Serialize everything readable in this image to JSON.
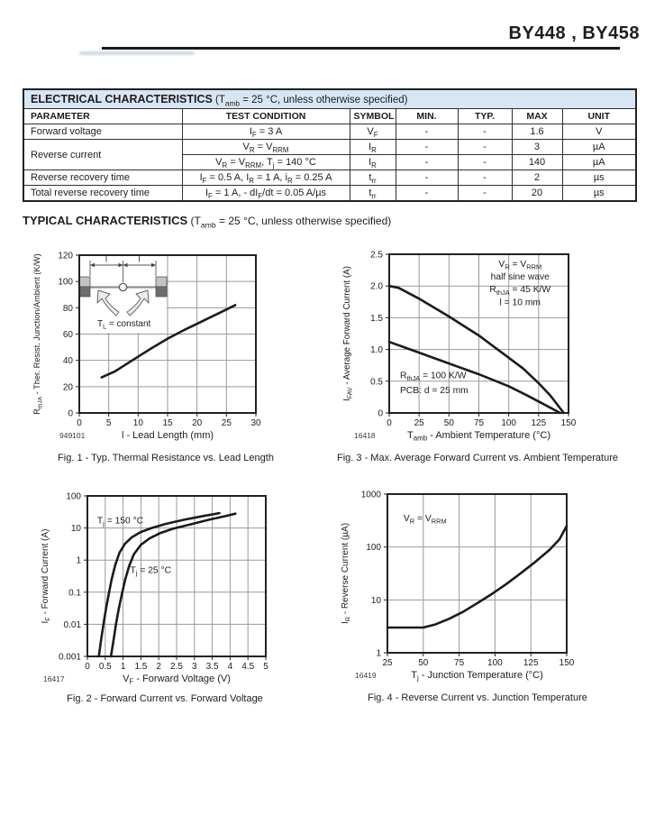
{
  "page": {
    "title": "BY448 , BY458"
  },
  "colors": {
    "table_title_bg": "#d8e6f3",
    "grid": "#9a9a9a",
    "curve": "#1b1b1b",
    "rule": "#1a1a1a"
  },
  "electrical_table": {
    "title_bold": "ELECTRICAL CHARACTERISTICS",
    "title_rest": " (T~amb~ = 25 °C, unless otherwise specified)",
    "columns": [
      "PARAMETER",
      "TEST CONDITION",
      "SYMBOL",
      "MIN.",
      "TYP.",
      "MAX",
      "UNIT"
    ],
    "rows": [
      {
        "parameter": "Forward voltage",
        "rowspan": 1,
        "condition": "I~F~ = 3 A",
        "symbol": "V~F~",
        "min": "-",
        "typ": "-",
        "max": "1.6",
        "unit": "V"
      },
      {
        "parameter": "Reverse current",
        "rowspan": 2,
        "condition": "V~R~ = V~RRM~",
        "symbol": "I~R~",
        "min": "-",
        "typ": "-",
        "max": "3",
        "unit": "µA"
      },
      {
        "parameter": null,
        "condition": "V~R~ = V~RRM~, T~j~ = 140 °C",
        "symbol": "I~R~",
        "min": "-",
        "typ": "-",
        "max": "140",
        "unit": "µA"
      },
      {
        "parameter": "Reverse recovery time",
        "rowspan": 1,
        "condition": "I~F~ = 0.5 A, I~R~ = 1 A, i~R~ = 0.25 A",
        "symbol": "t~rr~",
        "min": "-",
        "typ": "-",
        "max": "2",
        "unit": "µs"
      },
      {
        "parameter": "Total reverse recovery time",
        "rowspan": 1,
        "condition": "I~F~ = 1 A, - dI~F~/dt = 0.05 A/µs",
        "symbol": "t~rr~",
        "min": "-",
        "typ": "-",
        "max": "20",
        "unit": "µs"
      }
    ]
  },
  "typical_heading": {
    "bold": "TYPICAL CHARACTERISTICS",
    "rest": " (T~amb~ = 25 °C, unless otherwise specified)"
  },
  "chart_data": [
    {
      "name": "fig1",
      "type": "line",
      "code": "949101",
      "caption": "Fig. 1 - Typ. Thermal Resistance vs. Lead Length",
      "xlabel": "l - Lead Length (mm)",
      "ylabel": "R~thJA~ - Ther. Resist. Junction/Ambient (K/W)",
      "xlim": [
        0,
        30
      ],
      "ylim": [
        0,
        120
      ],
      "xticks": [
        0,
        5,
        10,
        15,
        20,
        25,
        30
      ],
      "xtick_labels": [
        "0",
        "5",
        "10",
        "15",
        "20",
        "25",
        "30"
      ],
      "yticks": [
        0,
        20,
        40,
        60,
        80,
        100,
        120
      ],
      "ytick_labels": [
        "0",
        "20",
        "40",
        "60",
        "80",
        "100",
        "120"
      ],
      "grid": true,
      "series": [
        {
          "name": "RthJA vs lead length",
          "points": [
            [
              3.8,
              27
            ],
            [
              6,
              31.5
            ],
            [
              9,
              40
            ],
            [
              12,
              48.5
            ],
            [
              15,
              56.5
            ],
            [
              18,
              63.5
            ],
            [
              21,
              70
            ],
            [
              24,
              76.5
            ],
            [
              26.5,
              82
            ]
          ]
        }
      ],
      "annotations": [],
      "inset": {
        "type": "lead-cooling",
        "label": "T~L~ = constant"
      }
    },
    {
      "name": "fig2",
      "type": "line",
      "code": "16417",
      "caption": "Fig. 2 - Forward Current vs. Forward Voltage",
      "xlabel": "V~F~ - Forward Voltage (V)",
      "ylabel": "I~F~ - Forward Current (A)",
      "xlim": [
        0,
        5
      ],
      "ylim": [
        0.001,
        100
      ],
      "ylog": true,
      "xticks": [
        0,
        0.5,
        1,
        1.5,
        2,
        2.5,
        3,
        3.5,
        4,
        4.5,
        5
      ],
      "xtick_labels": [
        "0",
        "0.5",
        "1",
        "1.5",
        "2",
        "2.5",
        "3",
        "3.5",
        "4",
        "4.5",
        "5"
      ],
      "yticks": [
        0.001,
        0.01,
        0.1,
        1,
        10,
        100
      ],
      "ytick_labels": [
        "0.001",
        "0.01",
        "0.1",
        "1",
        "10",
        "100"
      ],
      "grid": true,
      "series": [
        {
          "name": "Tj = 150 °C",
          "points": [
            [
              0.32,
              0.001
            ],
            [
              0.38,
              0.003
            ],
            [
              0.45,
              0.01
            ],
            [
              0.52,
              0.03
            ],
            [
              0.6,
              0.09
            ],
            [
              0.68,
              0.25
            ],
            [
              0.78,
              0.7
            ],
            [
              0.9,
              1.7
            ],
            [
              1.05,
              3.2
            ],
            [
              1.25,
              5.2
            ],
            [
              1.5,
              7.5
            ],
            [
              1.8,
              10
            ],
            [
              2.2,
              13.5
            ],
            [
              2.7,
              18
            ],
            [
              3.2,
              23
            ],
            [
              3.7,
              29
            ]
          ]
        },
        {
          "name": "Tj = 25 °C",
          "points": [
            [
              0.66,
              0.001
            ],
            [
              0.73,
              0.003
            ],
            [
              0.8,
              0.01
            ],
            [
              0.88,
              0.03
            ],
            [
              0.97,
              0.09
            ],
            [
              1.06,
              0.25
            ],
            [
              1.17,
              0.65
            ],
            [
              1.3,
              1.5
            ],
            [
              1.5,
              3
            ],
            [
              1.75,
              4.8
            ],
            [
              2.05,
              7
            ],
            [
              2.4,
              9.5
            ],
            [
              2.9,
              13
            ],
            [
              3.4,
              18
            ],
            [
              3.9,
              24
            ],
            [
              4.15,
              28
            ]
          ]
        }
      ],
      "annotations": [
        {
          "fx": 0.055,
          "fy": 0.17,
          "anchor": "start",
          "text": "T~j~ = 150 °C"
        },
        {
          "fx": 0.24,
          "fy": 0.48,
          "anchor": "start",
          "text": "T~j~ = 25 °C"
        }
      ]
    },
    {
      "name": "fig3",
      "type": "line",
      "code": "16418",
      "caption": "Fig. 3 - Max. Average Forward Current vs. Ambient Temperature",
      "xlabel": "T~amb~ - Ambient Temperature (°C)",
      "ylabel": "I~FAV~ - Average Forward Current (A)",
      "xlim": [
        0,
        150
      ],
      "ylim": [
        0,
        2.5
      ],
      "xticks": [
        0,
        25,
        50,
        75,
        100,
        125,
        150
      ],
      "xtick_labels": [
        "0",
        "25",
        "50",
        "75",
        "100",
        "125",
        "150"
      ],
      "yticks": [
        0,
        0.5,
        1,
        1.5,
        2,
        2.5
      ],
      "ytick_labels": [
        "0",
        "0.5",
        "1.0",
        "1.5",
        "2.0",
        "2.5"
      ],
      "grid": true,
      "series": [
        {
          "name": "RthJA = 45 K/W",
          "points": [
            [
              0,
              2.0
            ],
            [
              8,
              1.97
            ],
            [
              25,
              1.8
            ],
            [
              50,
              1.52
            ],
            [
              75,
              1.22
            ],
            [
              100,
              0.87
            ],
            [
              112,
              0.7
            ],
            [
              125,
              0.47
            ],
            [
              135,
              0.27
            ],
            [
              146,
              0
            ]
          ]
        },
        {
          "name": "RthJA = 100 K/W",
          "points": [
            [
              0,
              1.12
            ],
            [
              25,
              0.95
            ],
            [
              50,
              0.78
            ],
            [
              75,
              0.61
            ],
            [
              100,
              0.42
            ],
            [
              115,
              0.28
            ],
            [
              130,
              0.13
            ],
            [
              143,
              0
            ]
          ]
        }
      ],
      "annotations": [
        {
          "fx": 0.73,
          "fy": 0.08,
          "anchor": "middle",
          "text": "V~R~ = V~RRM~"
        },
        {
          "fx": 0.73,
          "fy": 0.16,
          "anchor": "middle",
          "text": "half sine wave"
        },
        {
          "fx": 0.73,
          "fy": 0.24,
          "anchor": "middle",
          "text": "R~thJA~ = 45 K/W"
        },
        {
          "fx": 0.73,
          "fy": 0.32,
          "anchor": "middle",
          "text": "l = 10 mm"
        },
        {
          "fx": 0.06,
          "fy": 0.78,
          "anchor": "start",
          "text": "R~thJA~ = 100 K/W"
        },
        {
          "fx": 0.06,
          "fy": 0.875,
          "anchor": "start",
          "text": "PCB: d = 25 mm"
        }
      ]
    },
    {
      "name": "fig4",
      "type": "line",
      "code": "16419",
      "caption": "Fig. 4 - Reverse Current vs. Junction Temperature",
      "xlabel": "T~j~ - Junction Temperature (°C)",
      "ylabel": "I~R~ - Reverse Current (µA)",
      "xlim": [
        25,
        150
      ],
      "ylim": [
        1,
        1000
      ],
      "ylog": true,
      "xticks": [
        25,
        50,
        75,
        100,
        125,
        150
      ],
      "xtick_labels": [
        "25",
        "50",
        "75",
        "100",
        "125",
        "150"
      ],
      "yticks": [
        1,
        10,
        100,
        1000
      ],
      "ytick_labels": [
        "1",
        "10",
        "100",
        "1000"
      ],
      "grid": true,
      "series": [
        {
          "name": "IR vs Tj",
          "points": [
            [
              25,
              3
            ],
            [
              50,
              3
            ],
            [
              58,
              3.4
            ],
            [
              68,
              4.4
            ],
            [
              78,
              6
            ],
            [
              88,
              8.8
            ],
            [
              98,
              13
            ],
            [
              108,
              20
            ],
            [
              118,
              32
            ],
            [
              128,
              52
            ],
            [
              138,
              88
            ],
            [
              145,
              140
            ],
            [
              150,
              250
            ]
          ]
        }
      ],
      "annotations": [
        {
          "fx": 0.09,
          "fy": 0.17,
          "anchor": "start",
          "text": "V~R~ = V~RRM~"
        }
      ]
    }
  ]
}
